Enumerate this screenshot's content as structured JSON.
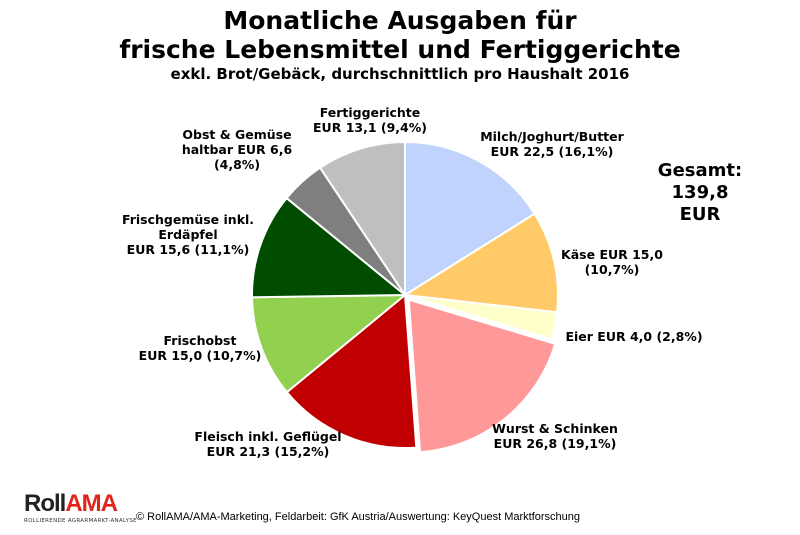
{
  "chart_data": {
    "type": "pie",
    "title": "Monatliche Ausgaben für",
    "title_line2": "frische Lebensmittel und Fertiggerichte",
    "subtitle": "exkl. Brot/Gebäck, durchschnittlich pro Haushalt 2016",
    "unit": "EUR",
    "total_label": "Gesamt:",
    "total_value": "139,8 EUR",
    "slices": [
      {
        "name": "Milch/Joghurt/Butter",
        "value": 22.5,
        "percent": 16.1,
        "color": "#c0d3fd",
        "line1": "Milch/Joghurt/Butter",
        "line2": "EUR 22,5 (16,1%)"
      },
      {
        "name": "Käse",
        "value": 15.0,
        "percent": 10.7,
        "color": "#ffca67",
        "line1": "Käse EUR 15,0",
        "line2": "(10,7%)"
      },
      {
        "name": "Eier",
        "value": 4.0,
        "percent": 2.8,
        "color": "#ffffcc",
        "line1": "Eier EUR 4,0 (2,8%)"
      },
      {
        "name": "Wurst & Schinken",
        "value": 26.8,
        "percent": 19.1,
        "color": "#ff9999",
        "line1": "Wurst & Schinken",
        "line2": "EUR 26,8 (19,1%)",
        "exploded": true
      },
      {
        "name": "Fleisch inkl. Geflügel",
        "value": 21.3,
        "percent": 15.2,
        "color": "#c00000",
        "line1": "Fleisch inkl. Geflügel",
        "line2": "EUR 21,3 (15,2%)"
      },
      {
        "name": "Frischobst",
        "value": 15.0,
        "percent": 10.7,
        "color": "#92d050",
        "line1": "Frischobst",
        "line2": "EUR 15,0 (10,7%)"
      },
      {
        "name": "Frischgemüse inkl. Erdäpfel",
        "value": 15.6,
        "percent": 11.1,
        "color": "#004d00",
        "line1": "Frischgemüse inkl.",
        "line2": "Erdäpfel",
        "line3": "EUR 15,6 (11,1%)"
      },
      {
        "name": "Obst & Gemüse haltbar",
        "value": 6.6,
        "percent": 4.8,
        "color": "#7f7f7f",
        "line1": "Obst & Gemüse",
        "line2": "haltbar EUR 6,6",
        "line3": "(4,8%)"
      },
      {
        "name": "Fertiggerichte",
        "value": 13.1,
        "percent": 9.4,
        "color": "#bfbfbf",
        "line1": "Fertiggerichte",
        "line2": "EUR 13,1 (9,4%)"
      }
    ]
  },
  "footer": {
    "logo_text": "RollAMA",
    "logo_roll": "Roll",
    "logo_ama": "AMA",
    "logo_tagline": "ROLLIERENDE AGRARMARKT-ANALYSE",
    "source": "© RollAMA/AMA-Marketing, Feldarbeit: GfK Austria/Auswertung: KeyQuest Marktforschung"
  }
}
